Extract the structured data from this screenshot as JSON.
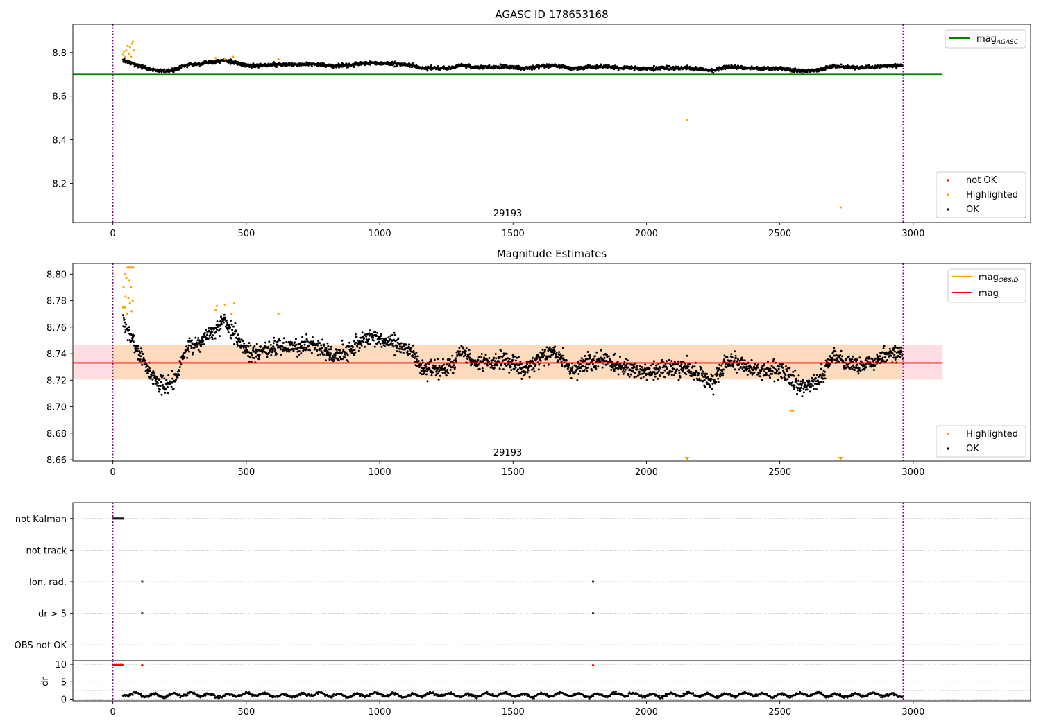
{
  "chart_data": [
    {
      "type": "scatter",
      "title": "AGASC ID 178653168",
      "xlim": [
        -150,
        3440
      ],
      "ylim": [
        8.02,
        8.93
      ],
      "xticks": [
        0,
        500,
        1000,
        1500,
        2000,
        2500,
        3000
      ],
      "yticks": [
        8.2,
        8.4,
        8.6,
        8.8
      ],
      "ytick_decimals": 1,
      "grid": false,
      "vlines": [
        0,
        2962
      ],
      "vline_color": "#800080",
      "annotation": {
        "text": "29193",
        "x": 1480
      },
      "hline": {
        "name": "mag",
        "subscript": "AGASC",
        "y": 8.7,
        "x_range": [
          -150,
          3110
        ],
        "color": "#008000"
      },
      "line_legend": {
        "placement": "top-right"
      },
      "marker_legend": {
        "placement": "bottom-right",
        "entries": [
          {
            "label": "not OK",
            "color": "#ff0000"
          },
          {
            "label": "Highlighted",
            "color": "#ffa500"
          },
          {
            "label": "OK",
            "color": "#000000"
          }
        ]
      },
      "ok_series": {
        "name": "OK",
        "color": "#000000",
        "x_range": [
          38,
          2960
        ],
        "anchors": [
          [
            38,
            8.765
          ],
          [
            60,
            8.755
          ],
          [
            100,
            8.74
          ],
          [
            140,
            8.725
          ],
          [
            190,
            8.715
          ],
          [
            230,
            8.72
          ],
          [
            270,
            8.742
          ],
          [
            330,
            8.75
          ],
          [
            420,
            8.765
          ],
          [
            470,
            8.75
          ],
          [
            520,
            8.74
          ],
          [
            600,
            8.745
          ],
          [
            700,
            8.745
          ],
          [
            760,
            8.748
          ],
          [
            820,
            8.738
          ],
          [
            880,
            8.742
          ],
          [
            950,
            8.752
          ],
          [
            1050,
            8.748
          ],
          [
            1120,
            8.742
          ],
          [
            1160,
            8.728
          ],
          [
            1250,
            8.728
          ],
          [
            1310,
            8.742
          ],
          [
            1350,
            8.732
          ],
          [
            1450,
            8.735
          ],
          [
            1550,
            8.728
          ],
          [
            1650,
            8.742
          ],
          [
            1720,
            8.728
          ],
          [
            1830,
            8.736
          ],
          [
            1900,
            8.73
          ],
          [
            2000,
            8.726
          ],
          [
            2150,
            8.73
          ],
          [
            2250,
            8.718
          ],
          [
            2300,
            8.735
          ],
          [
            2400,
            8.728
          ],
          [
            2500,
            8.728
          ],
          [
            2580,
            8.715
          ],
          [
            2650,
            8.72
          ],
          [
            2700,
            8.738
          ],
          [
            2800,
            8.73
          ],
          [
            2900,
            8.738
          ],
          [
            2960,
            8.742
          ]
        ],
        "noise": 0.0065,
        "count": 2300
      },
      "highlighted_series": {
        "name": "Highlighted",
        "color": "#ffa500",
        "points": [
          [
            38,
            8.79
          ],
          [
            42,
            8.805
          ],
          [
            46,
            8.78
          ],
          [
            50,
            8.81
          ],
          [
            55,
            8.83
          ],
          [
            60,
            8.795
          ],
          [
            64,
            8.825
          ],
          [
            68,
            8.78
          ],
          [
            72,
            8.84
          ],
          [
            75,
            8.85
          ],
          [
            78,
            8.81
          ],
          [
            385,
            8.775
          ],
          [
            420,
            8.77
          ],
          [
            450,
            8.78
          ],
          [
            620,
            8.77
          ],
          [
            2152,
            8.49
          ],
          [
            2728,
            8.09
          ],
          [
            2540,
            8.705
          ]
        ]
      }
    },
    {
      "type": "scatter",
      "title": "Magnitude Estimates",
      "xlim": [
        -150,
        3440
      ],
      "ylim": [
        8.659,
        8.808
      ],
      "xticks": [
        0,
        500,
        1000,
        1500,
        2000,
        2500,
        3000
      ],
      "yticks": [
        8.66,
        8.68,
        8.7,
        8.72,
        8.74,
        8.76,
        8.78,
        8.8
      ],
      "ytick_decimals": 2,
      "grid": false,
      "vlines": [
        0,
        2962
      ],
      "vline_color": "#800080",
      "annotation": {
        "text": "29193",
        "x": 1480
      },
      "band": {
        "y_range": [
          8.7205,
          8.7465
        ],
        "x_range": [
          -150,
          3110
        ],
        "color": "#ffb6c1"
      },
      "band_inner": {
        "y_range": [
          8.7205,
          8.7465
        ],
        "x_range": [
          0,
          2962
        ],
        "color": "#ffdab9"
      },
      "lines": [
        {
          "name": "mag",
          "subscript": "OBSID",
          "color": "#ffa500"
        },
        {
          "name": "mag",
          "subscript": "",
          "y": 8.733,
          "x_range": [
            -150,
            3110
          ],
          "color": "#ff0000"
        }
      ],
      "line_legend": {
        "placement": "top-right"
      },
      "marker_legend": {
        "placement": "bottom-right",
        "entries": [
          {
            "label": "Highlighted",
            "color": "#ffa500"
          },
          {
            "label": "OK",
            "color": "#000000"
          }
        ]
      },
      "ok_series": {
        "name": "OK",
        "color": "#000000",
        "x_range": [
          38,
          2960
        ],
        "anchors": [
          [
            38,
            8.765
          ],
          [
            60,
            8.755
          ],
          [
            100,
            8.74
          ],
          [
            140,
            8.725
          ],
          [
            190,
            8.715
          ],
          [
            230,
            8.72
          ],
          [
            270,
            8.742
          ],
          [
            330,
            8.75
          ],
          [
            420,
            8.765
          ],
          [
            470,
            8.75
          ],
          [
            520,
            8.74
          ],
          [
            600,
            8.745
          ],
          [
            700,
            8.745
          ],
          [
            760,
            8.748
          ],
          [
            820,
            8.738
          ],
          [
            880,
            8.742
          ],
          [
            950,
            8.752
          ],
          [
            1050,
            8.748
          ],
          [
            1120,
            8.742
          ],
          [
            1160,
            8.728
          ],
          [
            1250,
            8.728
          ],
          [
            1310,
            8.742
          ],
          [
            1350,
            8.732
          ],
          [
            1450,
            8.735
          ],
          [
            1550,
            8.728
          ],
          [
            1650,
            8.742
          ],
          [
            1720,
            8.728
          ],
          [
            1830,
            8.736
          ],
          [
            1900,
            8.73
          ],
          [
            2000,
            8.726
          ],
          [
            2150,
            8.73
          ],
          [
            2250,
            8.718
          ],
          [
            2300,
            8.735
          ],
          [
            2400,
            8.728
          ],
          [
            2500,
            8.728
          ],
          [
            2580,
            8.715
          ],
          [
            2650,
            8.72
          ],
          [
            2700,
            8.738
          ],
          [
            2800,
            8.73
          ],
          [
            2900,
            8.738
          ],
          [
            2960,
            8.742
          ]
        ],
        "noise": 0.0065,
        "count": 2300
      },
      "highlighted_series": {
        "name": "Highlighted",
        "color": "#ffa500",
        "points": [
          [
            38,
            8.775
          ],
          [
            40,
            8.79
          ],
          [
            44,
            8.8
          ],
          [
            46,
            8.775
          ],
          [
            48,
            8.783
          ],
          [
            50,
            8.797
          ],
          [
            52,
            8.77
          ],
          [
            55,
            8.805
          ],
          [
            58,
            8.782
          ],
          [
            60,
            8.805
          ],
          [
            62,
            8.795
          ],
          [
            64,
            8.778
          ],
          [
            66,
            8.805
          ],
          [
            68,
            8.79
          ],
          [
            70,
            8.772
          ],
          [
            72,
            8.805
          ],
          [
            74,
            8.78
          ],
          [
            76,
            8.805
          ],
          [
            385,
            8.773
          ],
          [
            390,
            8.776
          ],
          [
            420,
            8.777
          ],
          [
            445,
            8.77
          ],
          [
            455,
            8.778
          ],
          [
            620,
            8.77
          ]
        ]
      },
      "offscale_markers": {
        "color": "#ffa500",
        "x": [
          2152,
          2728
        ]
      },
      "low_highlighted": {
        "color": "#ffa500",
        "x": [
          2540,
          2545,
          2550
        ],
        "y": 8.697
      }
    },
    {
      "type": "scatter",
      "xlim": [
        -150,
        3440
      ],
      "xticks": [
        0,
        500,
        1000,
        1500,
        2000,
        2500,
        3000
      ],
      "vlines": [
        0,
        2962
      ],
      "vline_color": "#800080",
      "flag_rows": [
        "not Kalman",
        "not track",
        "Ion. rad.",
        "dr > 5",
        "OBS not OK"
      ],
      "flag_points": [
        {
          "row": "not Kalman",
          "x": [
            0,
            4,
            8,
            12,
            16,
            20,
            24,
            28,
            32,
            36,
            38
          ]
        },
        {
          "row": "Ion. rad.",
          "x": [
            110,
            1800
          ]
        },
        {
          "row": "dr > 5",
          "x": [
            110,
            1800
          ]
        }
      ],
      "dr_panel": {
        "ylabel": "dr",
        "ylim": [
          -0.5,
          11
        ],
        "yticks": [
          0,
          5,
          10
        ],
        "grid_y": [
          0,
          2.5,
          5,
          7.5,
          10
        ],
        "capped_marker": {
          "color": "#ff0000",
          "y": 10,
          "x": [
            0,
            4,
            8,
            12,
            16,
            20,
            24,
            28,
            32,
            36,
            110,
            1800
          ]
        },
        "series": {
          "name": "dr",
          "color": "#000000",
          "x_range": [
            38,
            2960
          ],
          "typical": 1.2,
          "spread": 0.7,
          "count": 1200
        }
      }
    }
  ]
}
